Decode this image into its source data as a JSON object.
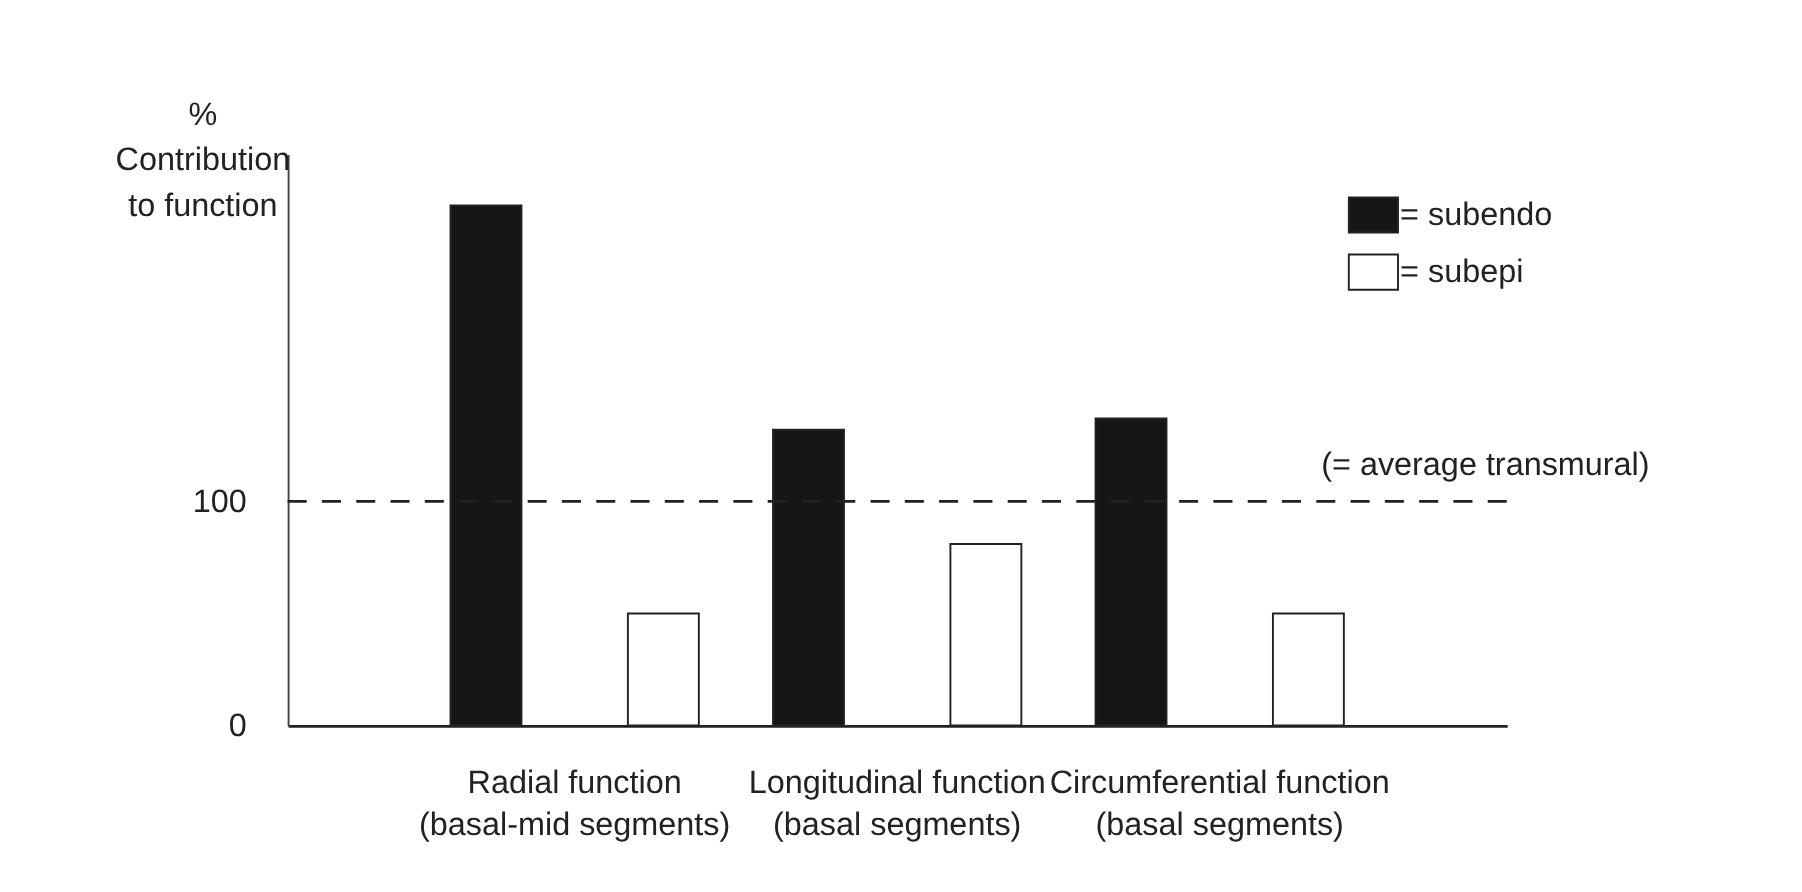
{
  "chart_data": {
    "type": "bar",
    "ylabel": "%\nContribution\nto function",
    "categories": [
      "Radial function\n(basal-mid segments)",
      "Longitudinal function\n(basal segments)",
      "Circumferential function\n(basal segments)"
    ],
    "series": [
      {
        "name": "= subendo",
        "color": "#161616",
        "values": [
          232,
          132,
          137
        ]
      },
      {
        "name": "= subepi",
        "color": "#ffffff",
        "values": [
          50,
          81,
          50
        ]
      }
    ],
    "ylim": [
      0,
      255
    ],
    "yticks": [
      0,
      100
    ],
    "ref_lines": [
      {
        "axis": "y",
        "value": 100,
        "label": "(= average transmural)",
        "line_style": "dashed"
      }
    ],
    "grid": false,
    "legend": "top right"
  }
}
